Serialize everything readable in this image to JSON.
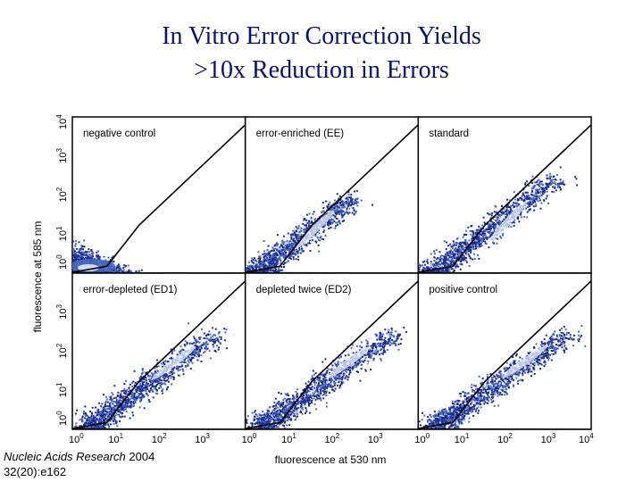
{
  "title": {
    "line1": "In Vitro Error Correction Yields",
    "line2": ">10x Reduction in Errors"
  },
  "citation": {
    "journal": "Nucleic Acids Research",
    "year": "2004",
    "issue": "32(20):e162"
  },
  "colors": {
    "title": "#0b1170",
    "density_low": "#1a2a8c",
    "density_mid": "#4a6ac0",
    "density_high": "#dfe6f5",
    "gate": "#000000"
  },
  "chart_data": {
    "type": "scatter",
    "xlabel": "fluorescence at 530 nm",
    "ylabel": "fluorescence at 585 nm",
    "x_scale": "log",
    "y_scale": "log",
    "xlim": [
      1,
      10000
    ],
    "ylim": [
      1,
      10000
    ],
    "x_ticks": [
      {
        "base": "10",
        "exp": "0",
        "value": 1
      },
      {
        "base": "10",
        "exp": "1",
        "value": 10
      },
      {
        "base": "10",
        "exp": "2",
        "value": 100
      },
      {
        "base": "10",
        "exp": "3",
        "value": 1000
      }
    ],
    "x_tick_last": {
      "base": "10",
      "exp": "4",
      "value": 10000
    },
    "y_ticks": [
      {
        "base": "10",
        "exp": "0",
        "value": 1
      },
      {
        "base": "10",
        "exp": "1",
        "value": 10
      },
      {
        "base": "10",
        "exp": "2",
        "value": 100
      },
      {
        "base": "10",
        "exp": "3",
        "value": 1000
      }
    ],
    "y_tick_top": {
      "base": "10",
      "exp": "4",
      "value": 10000
    },
    "gate": {
      "upper": [
        [
          1,
          1.05
        ],
        [
          6.3,
          1.5
        ],
        [
          35,
          17
        ],
        [
          10000,
          6300
        ]
      ],
      "lower": [
        [
          1,
          1.02
        ],
        [
          10000,
          1.0
        ]
      ]
    },
    "panels": [
      {
        "title": "negative control",
        "population": {
          "x_center": 2,
          "y_center": 1.5,
          "x_max": 12,
          "y_max": 12,
          "shape": "low-corner"
        }
      },
      {
        "title": "error-enriched (EE)",
        "population": {
          "x_center": 12,
          "y_center": 3,
          "x_max": 300,
          "y_max": 100,
          "shape": "diagonal"
        }
      },
      {
        "title": "standard",
        "population": {
          "x_center": 30,
          "y_center": 3,
          "x_max": 1500,
          "y_max": 320,
          "shape": "diagonal"
        }
      },
      {
        "title": "error-depleted (ED1)",
        "population": {
          "x_center": 80,
          "y_center": 20,
          "x_max": 2000,
          "y_max": 300,
          "shape": "diagonal"
        }
      },
      {
        "title": "depleted twice (ED2)",
        "population": {
          "x_center": 80,
          "y_center": 20,
          "x_max": 2500,
          "y_max": 320,
          "shape": "diagonal"
        }
      },
      {
        "title": "positive control",
        "population": {
          "x_center": 100,
          "y_center": 22,
          "x_max": 3000,
          "y_max": 320,
          "shape": "diagonal"
        }
      }
    ]
  }
}
